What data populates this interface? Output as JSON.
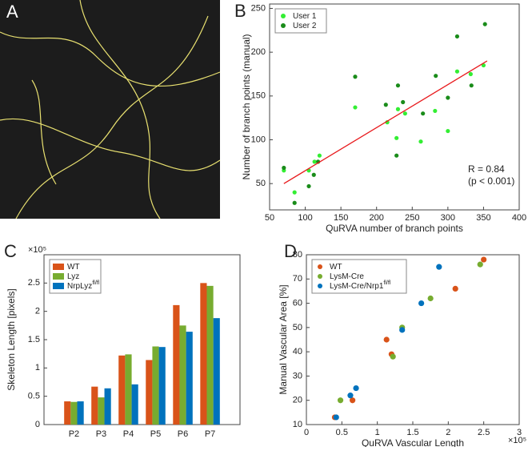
{
  "image_panel": {
    "label": "A"
  },
  "chart_data": [
    {
      "type": "scatter",
      "panel_label": "B",
      "x_label": "QuRVA number of branch points",
      "y_label": "Number of branch points (manual)",
      "xlim": [
        50,
        400
      ],
      "xticks": [
        50,
        100,
        150,
        200,
        250,
        300,
        350,
        400
      ],
      "ylim": [
        20,
        255
      ],
      "yticks": [
        50,
        100,
        150,
        200,
        250
      ],
      "legend": "upper left",
      "series": [
        {
          "name": "User 1",
          "color": "#33ee33",
          "x": [
            70,
            85,
            105,
            113,
            120,
            170,
            215,
            228,
            230,
            240,
            262,
            282,
            300,
            313,
            332,
            350
          ],
          "values": [
            65,
            40,
            65,
            75,
            82,
            137,
            120,
            102,
            135,
            130,
            98,
            133,
            110,
            178,
            175,
            185
          ]
        },
        {
          "name": "User 2",
          "color": "#1a8c1a",
          "x": [
            70,
            85,
            105,
            112,
            118,
            170,
            213,
            228,
            230,
            237,
            265,
            283,
            300,
            313,
            333,
            352
          ],
          "values": [
            68,
            28,
            47,
            60,
            75,
            172,
            140,
            82,
            162,
            143,
            130,
            173,
            148,
            218,
            162,
            232
          ]
        }
      ],
      "fit_line": {
        "color": "#e8191c",
        "x": [
          70,
          355
        ],
        "values": [
          50,
          190
        ]
      },
      "annotations": [
        "R = 0.84",
        "(p < 0.001)"
      ]
    },
    {
      "type": "bar",
      "panel_label": "C",
      "exponent": "×10⁵",
      "y_label": "Skeleton Length [pixels]",
      "categories": [
        "P2",
        "P3",
        "P4",
        "P5",
        "P6",
        "P7"
      ],
      "ylim": [
        0,
        3
      ],
      "yticks": [
        0,
        0.5,
        1,
        1.5,
        2,
        2.5
      ],
      "legend": "upper left",
      "series": [
        {
          "name": "WT",
          "color": "#d95319",
          "values": [
            0.41,
            0.67,
            1.22,
            1.14,
            2.11,
            2.5
          ]
        },
        {
          "name": "Lyz",
          "color": "#77ac30",
          "values": [
            0.4,
            0.48,
            1.24,
            1.38,
            1.75,
            2.45
          ]
        },
        {
          "name": "NrpLyz",
          "name_superscript": "fl/fl",
          "color": "#0072bd",
          "values": [
            0.41,
            0.64,
            0.71,
            1.37,
            1.64,
            1.88
          ]
        }
      ]
    },
    {
      "type": "scatter",
      "panel_label": "D",
      "exponent": "×10⁵",
      "x_label": "QuRVA Vascular Length",
      "y_label": "Manual Vascular Area [%]",
      "xlim": [
        0,
        3
      ],
      "xticks": [
        0,
        0.5,
        1,
        1.5,
        2,
        2.5,
        3
      ],
      "ylim": [
        10,
        80
      ],
      "yticks": [
        10,
        20,
        30,
        40,
        50,
        60,
        70,
        80
      ],
      "legend": "upper left",
      "series": [
        {
          "name": "WT",
          "color": "#d95319",
          "x": [
            0.4,
            0.65,
            1.13,
            1.2,
            2.1,
            2.5
          ],
          "values": [
            13,
            20,
            45,
            39,
            66,
            78
          ]
        },
        {
          "name": "LysM-Cre",
          "color": "#77ac30",
          "x": [
            0.48,
            1.22,
            1.35,
            1.75,
            2.45
          ],
          "values": [
            20,
            38,
            50,
            62,
            76
          ]
        },
        {
          "name": "LysM-Cre/Nrp1",
          "name_superscript": "fl/fl",
          "color": "#0072bd",
          "x": [
            0.42,
            0.62,
            0.7,
            1.35,
            1.62,
            1.87
          ],
          "values": [
            13,
            22,
            25,
            49,
            60,
            75
          ]
        }
      ]
    }
  ]
}
